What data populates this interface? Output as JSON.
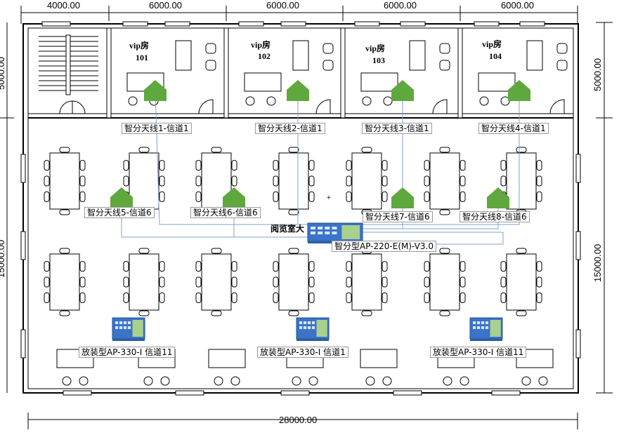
{
  "dimensions": {
    "top": [
      "4000.00",
      "6000.00",
      "6000.00",
      "6000.00",
      "6000.00"
    ],
    "right_top": "5000.00",
    "right_main": "15000.00",
    "bottom": "28000.00",
    "left_top": "5000.00",
    "left_main": "15000.00"
  },
  "rooms": [
    {
      "name": "vip房",
      "number": "101"
    },
    {
      "name": "vip房",
      "number": "102"
    },
    {
      "name": "vip房",
      "number": "103"
    },
    {
      "name": "vip房",
      "number": "104"
    }
  ],
  "hall_label": "阅览室大",
  "antennas": [
    "智分天线1-信道1",
    "智分天线2-信道1",
    "智分天线3-信道1",
    "智分天线4-信道1",
    "智分天线5-信道6",
    "智分天线6-信道6",
    "智分天线7-信道6",
    "智分天线8-信道6"
  ],
  "ap_main": "智分型AP-220-E(M)-V3.0",
  "ap_panels": [
    "放装型AP-330-I 信道11",
    "放装型AP-330-I 信道1",
    "放装型AP-330-I 信道11"
  ],
  "colors": {
    "antenna": "#5fa83d",
    "ap_blue": "#3a73c8",
    "ap_green": "#a9d18e",
    "cable": "#7da2d6"
  }
}
